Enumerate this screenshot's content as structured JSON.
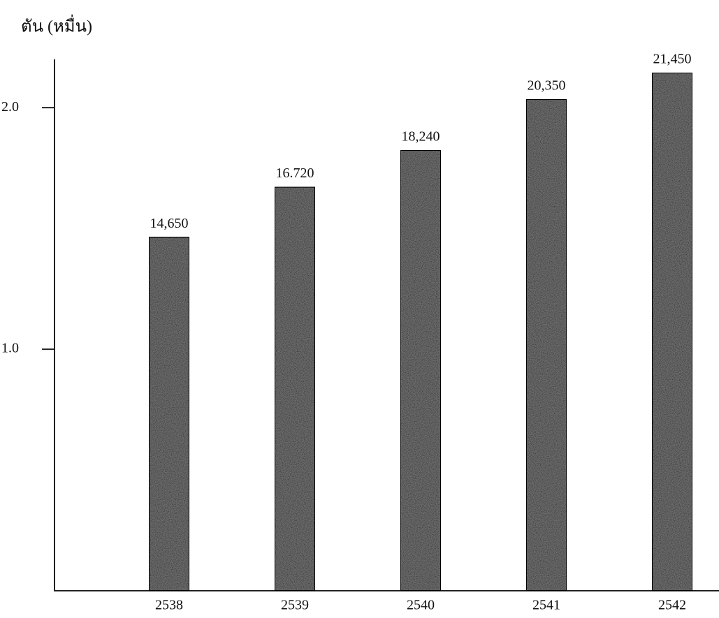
{
  "chart_data": {
    "type": "bar",
    "y_axis_label": "ตัน (หมื่น)",
    "categories": [
      "2538",
      "2539",
      "2540",
      "2541",
      "2542"
    ],
    "values": [
      1.465,
      1.672,
      1.824,
      2.035,
      2.145
    ],
    "value_labels": [
      "14,650",
      "16.720",
      "18,240",
      "20,350",
      "21,450"
    ],
    "color": "#6e6e6e",
    "ylim": [
      0,
      2.2
    ],
    "yticks": [
      {
        "value": 1,
        "label": "1.0"
      },
      {
        "value": 2,
        "label": "2.0"
      }
    ]
  }
}
